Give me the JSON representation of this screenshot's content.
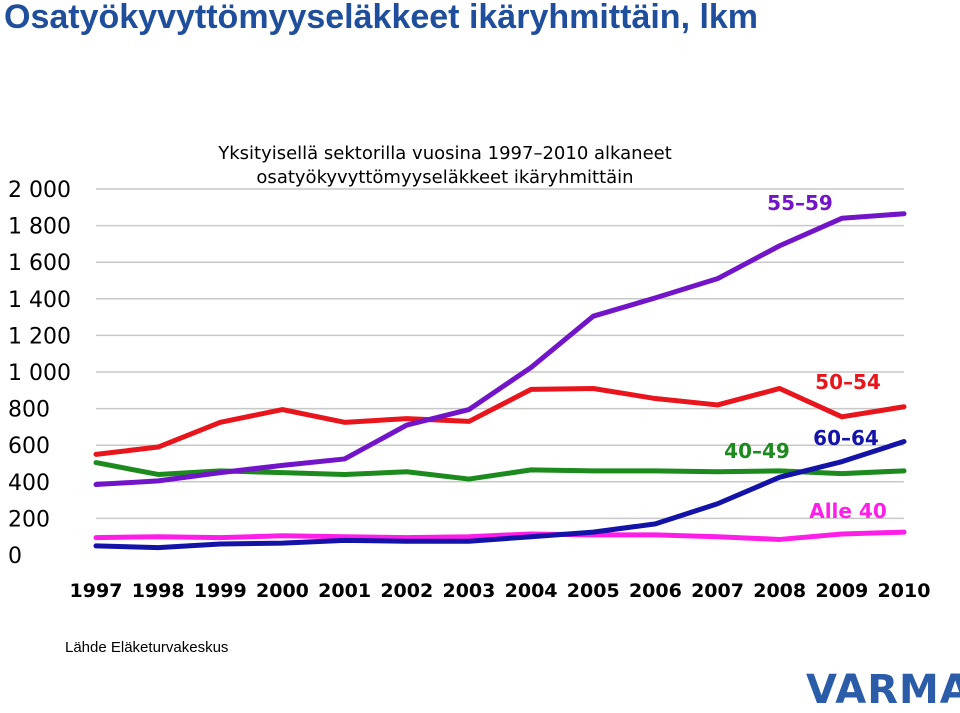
{
  "page": {
    "title": "Osatyökyvyttömyyseläkkeet ikäryhmittäin, lkm",
    "source": "Lähde Eläketurvakeskus",
    "logo": "VARMA",
    "colors": {
      "title": "#1f4e9c",
      "logo": "#2b5ca8"
    }
  },
  "chart_data": {
    "type": "line",
    "title": "Yksityisellä sektorilla vuosina 1997–2010 alkaneet",
    "subtitle": "osatyökyvyttömyyseläkkeet ikäryhmittäin",
    "xlabel": "",
    "ylabel": "",
    "ylim": [
      0,
      2000
    ],
    "yticks": [
      0,
      200,
      400,
      600,
      800,
      1000,
      1200,
      1400,
      1600,
      1800,
      2000
    ],
    "ytick_labels": [
      "0",
      "200",
      "400",
      "600",
      "800",
      "1 000",
      "1 200",
      "1 400",
      "1 600",
      "1 800",
      "2 000"
    ],
    "categories": [
      "1997",
      "1998",
      "1999",
      "2000",
      "2001",
      "2002",
      "2003",
      "2004",
      "2005",
      "2006",
      "2007",
      "2008",
      "2009",
      "2010"
    ],
    "grid": true,
    "series": [
      {
        "name": "Alle 40",
        "color": "#ff1ee8",
        "values": [
          95,
          100,
          95,
          105,
          100,
          95,
          100,
          115,
          110,
          110,
          100,
          85,
          115,
          125
        ]
      },
      {
        "name": "40–49",
        "color": "#1c8a1c",
        "values": [
          505,
          440,
          460,
          450,
          440,
          455,
          415,
          465,
          460,
          460,
          455,
          460,
          445,
          460
        ]
      },
      {
        "name": "50–54",
        "color": "#e8161c",
        "values": [
          550,
          590,
          725,
          795,
          725,
          745,
          730,
          905,
          910,
          855,
          820,
          910,
          755,
          810
        ]
      },
      {
        "name": "55–59",
        "color": "#7215c8",
        "values": [
          385,
          405,
          450,
          490,
          525,
          710,
          795,
          1025,
          1305,
          1405,
          1510,
          1690,
          1840,
          1865
        ]
      },
      {
        "name": "60–64",
        "color": "#1313a8",
        "values": [
          50,
          40,
          60,
          65,
          80,
          75,
          75,
          100,
          125,
          170,
          280,
          425,
          510,
          620
        ]
      }
    ],
    "series_labels": [
      "55–59",
      "50–54",
      "40–49",
      "60–64",
      "Alle 40"
    ]
  }
}
